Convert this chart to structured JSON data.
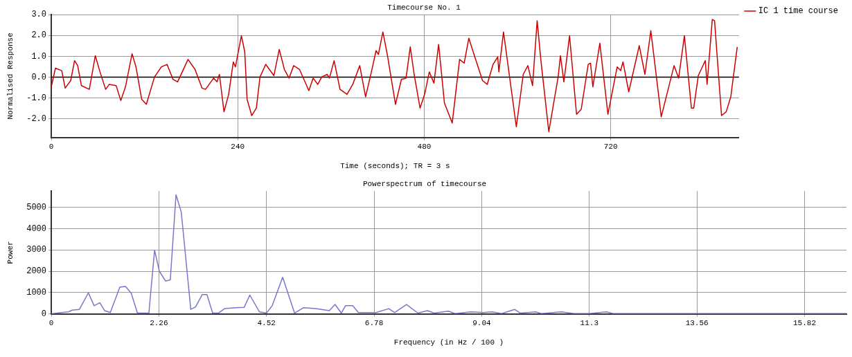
{
  "chart_data": [
    {
      "type": "line",
      "title": "Timecourse No. 1",
      "xlabel": "Time (seconds); TR = 3 s",
      "ylabel": "Normalised Response",
      "x": [
        0,
        5.4,
        13.5,
        17.9,
        25,
        30,
        34,
        38.8,
        49,
        56.7,
        62.7,
        70,
        74.6,
        83.5,
        89.5,
        95.5,
        104,
        109,
        116.4,
        122.4,
        132.8,
        141.7,
        149,
        156.7,
        162.6,
        176,
        185,
        194,
        198.5,
        209,
        213.4,
        216.4,
        222.3,
        228.3,
        234.3,
        237,
        244.7,
        249,
        252,
        258,
        264,
        268.6,
        276,
        286.5,
        293.4,
        300,
        306,
        312,
        319.5,
        331.5,
        337,
        343,
        348,
        355,
        358,
        364,
        371.6,
        380.6,
        388,
        397,
        404.5,
        412,
        418,
        421,
        426.8,
        432.7,
        443,
        450.6,
        456.6,
        462,
        467,
        474.6,
        480.5,
        486.5,
        492.5,
        498.5,
        506,
        516,
        525.5,
        531.4,
        537.4,
        542,
        555,
        561,
        568.6,
        574.6,
        576,
        582,
        598.5,
        607.4,
        613.4,
        619.4,
        625.3,
        630,
        640.3,
        652.3,
        655.3,
        659.7,
        667,
        676,
        682,
        691,
        694,
        697,
        706,
        716.4,
        728.3,
        732.8,
        735.8,
        743.2,
        756.7,
        764,
        771.6,
        785,
        801.5,
        807.4,
        814.8,
        823.8,
        826.8,
        832.7,
        841.7,
        844,
        850.7,
        853.6,
        862.6,
        868.6,
        874.5,
        882.8
      ],
      "series": [
        {
          "name": "IC 1 time course",
          "color": "#cc0000",
          "values": [
            -0.47,
            0.43,
            0.31,
            -0.53,
            -0.17,
            0.79,
            0.55,
            -0.41,
            -0.59,
            1.03,
            0.25,
            -0.59,
            -0.35,
            -0.41,
            -1.13,
            -0.47,
            1.12,
            0.49,
            -1.07,
            -1.31,
            0,
            0.49,
            0.61,
            -0.11,
            -0.23,
            0.85,
            0.37,
            -0.53,
            -0.59,
            -0.05,
            -0.23,
            0.13,
            -1.67,
            -0.83,
            0.73,
            0.49,
            1.99,
            1.21,
            -1.07,
            -1.85,
            -1.49,
            0,
            0.61,
            0.07,
            1.33,
            0.37,
            -0.05,
            0.55,
            0.37,
            -0.65,
            -0.05,
            -0.35,
            0,
            0.13,
            -0.05,
            0.79,
            -0.59,
            -0.83,
            -0.35,
            0.55,
            -0.95,
            0.25,
            1.27,
            1.09,
            2.17,
            1.03,
            -1.31,
            -0.11,
            -0.05,
            1.45,
            0.13,
            -1.49,
            -0.83,
            0.25,
            -0.29,
            1.57,
            -1.25,
            -2.21,
            0.85,
            0.67,
            1.87,
            1.33,
            -0.17,
            -0.35,
            0.61,
            0.97,
            0.25,
            2.17,
            -2.39,
            0.13,
            0.55,
            -0.41,
            2.71,
            0.85,
            -2.63,
            0,
            1.03,
            -0.23,
            1.99,
            -1.79,
            -1.55,
            0.61,
            0.67,
            -0.47,
            1.63,
            -1.79,
            0.49,
            0.31,
            0.73,
            -0.71,
            1.51,
            0.13,
            2.23,
            -1.91,
            0.55,
            -0.05,
            1.99,
            -1.49,
            -1.49,
            0.07,
            0.79,
            -0.35,
            2.77,
            2.71,
            -1.85,
            -1.67,
            -0.95,
            1.45
          ]
        }
      ],
      "xlim": [
        0,
        885
      ],
      "xticks": [
        0,
        240,
        480,
        720
      ],
      "ylim": [
        -2.9,
        3
      ],
      "yticks": [
        {
          "value": 3,
          "label": "3.0"
        },
        {
          "value": 2,
          "label": "2.0"
        },
        {
          "value": 1,
          "label": "1.0"
        },
        {
          "value": 0,
          "label": "0.0"
        },
        {
          "value": -1,
          "label": "-1.0"
        },
        {
          "value": -2,
          "label": "-2.0"
        }
      ],
      "ref_lines": [
        {
          "axis": "y",
          "value": 0,
          "color": "#000000"
        }
      ],
      "grid": true,
      "legend": "top right",
      "marker": "none"
    },
    {
      "type": "line",
      "title": "Powerspectrum of timecourse",
      "xlabel": "Frequency (in Hz / 100 )",
      "ylabel": "Power",
      "x": [
        0,
        0.215,
        0.36,
        0.44,
        0.59,
        0.78,
        0.9,
        1.02,
        1.12,
        1.24,
        1.44,
        1.56,
        1.68,
        1.81,
        2.05,
        2.17,
        2.27,
        2.4,
        2.5,
        2.62,
        2.73,
        2.93,
        3.03,
        3.17,
        3.27,
        3.39,
        3.51,
        3.64,
        3.88,
        4.05,
        4.17,
        4.37,
        4.52,
        4.64,
        4.86,
        5.11,
        5.3,
        5.55,
        5.84,
        5.96,
        6.09,
        6.18,
        6.33,
        6.45,
        6.82,
        7.09,
        7.21,
        7.46,
        7.7,
        7.9,
        8.04,
        8.34,
        8.48,
        8.82,
        9.07,
        9.26,
        9.46,
        9.73,
        9.85,
        10.17,
        10.29,
        10.71,
        10.98,
        11.3,
        11.66,
        11.8,
        16.7
      ],
      "series": [
        {
          "color": "#7777cc",
          "values": [
            0,
            58,
            93,
            174,
            209,
            985,
            382,
            521,
            150,
            58,
            1250,
            1285,
            960,
            35,
            35,
            2986,
            2000,
            1540,
            1597,
            5590,
            4780,
            208,
            324,
            903,
            903,
            35,
            35,
            243,
            289,
            300,
            880,
            93,
            35,
            382,
            1713,
            35,
            289,
            243,
            150,
            440,
            35,
            382,
            382,
            58,
            58,
            243,
            58,
            440,
            35,
            150,
            35,
            127,
            12,
            93,
            58,
            93,
            12,
            208,
            35,
            93,
            12,
            93,
            12,
            12,
            93,
            12,
            12
          ]
        }
      ],
      "xlim": [
        0,
        16.7
      ],
      "xticks": [
        0,
        2.26,
        4.52,
        6.78,
        9.04,
        11.3,
        13.56,
        15.82
      ],
      "ylim": [
        0,
        5760
      ],
      "yticks": [
        0,
        1000,
        2000,
        3000,
        4000,
        5000
      ],
      "grid": true,
      "marker": "none"
    }
  ]
}
